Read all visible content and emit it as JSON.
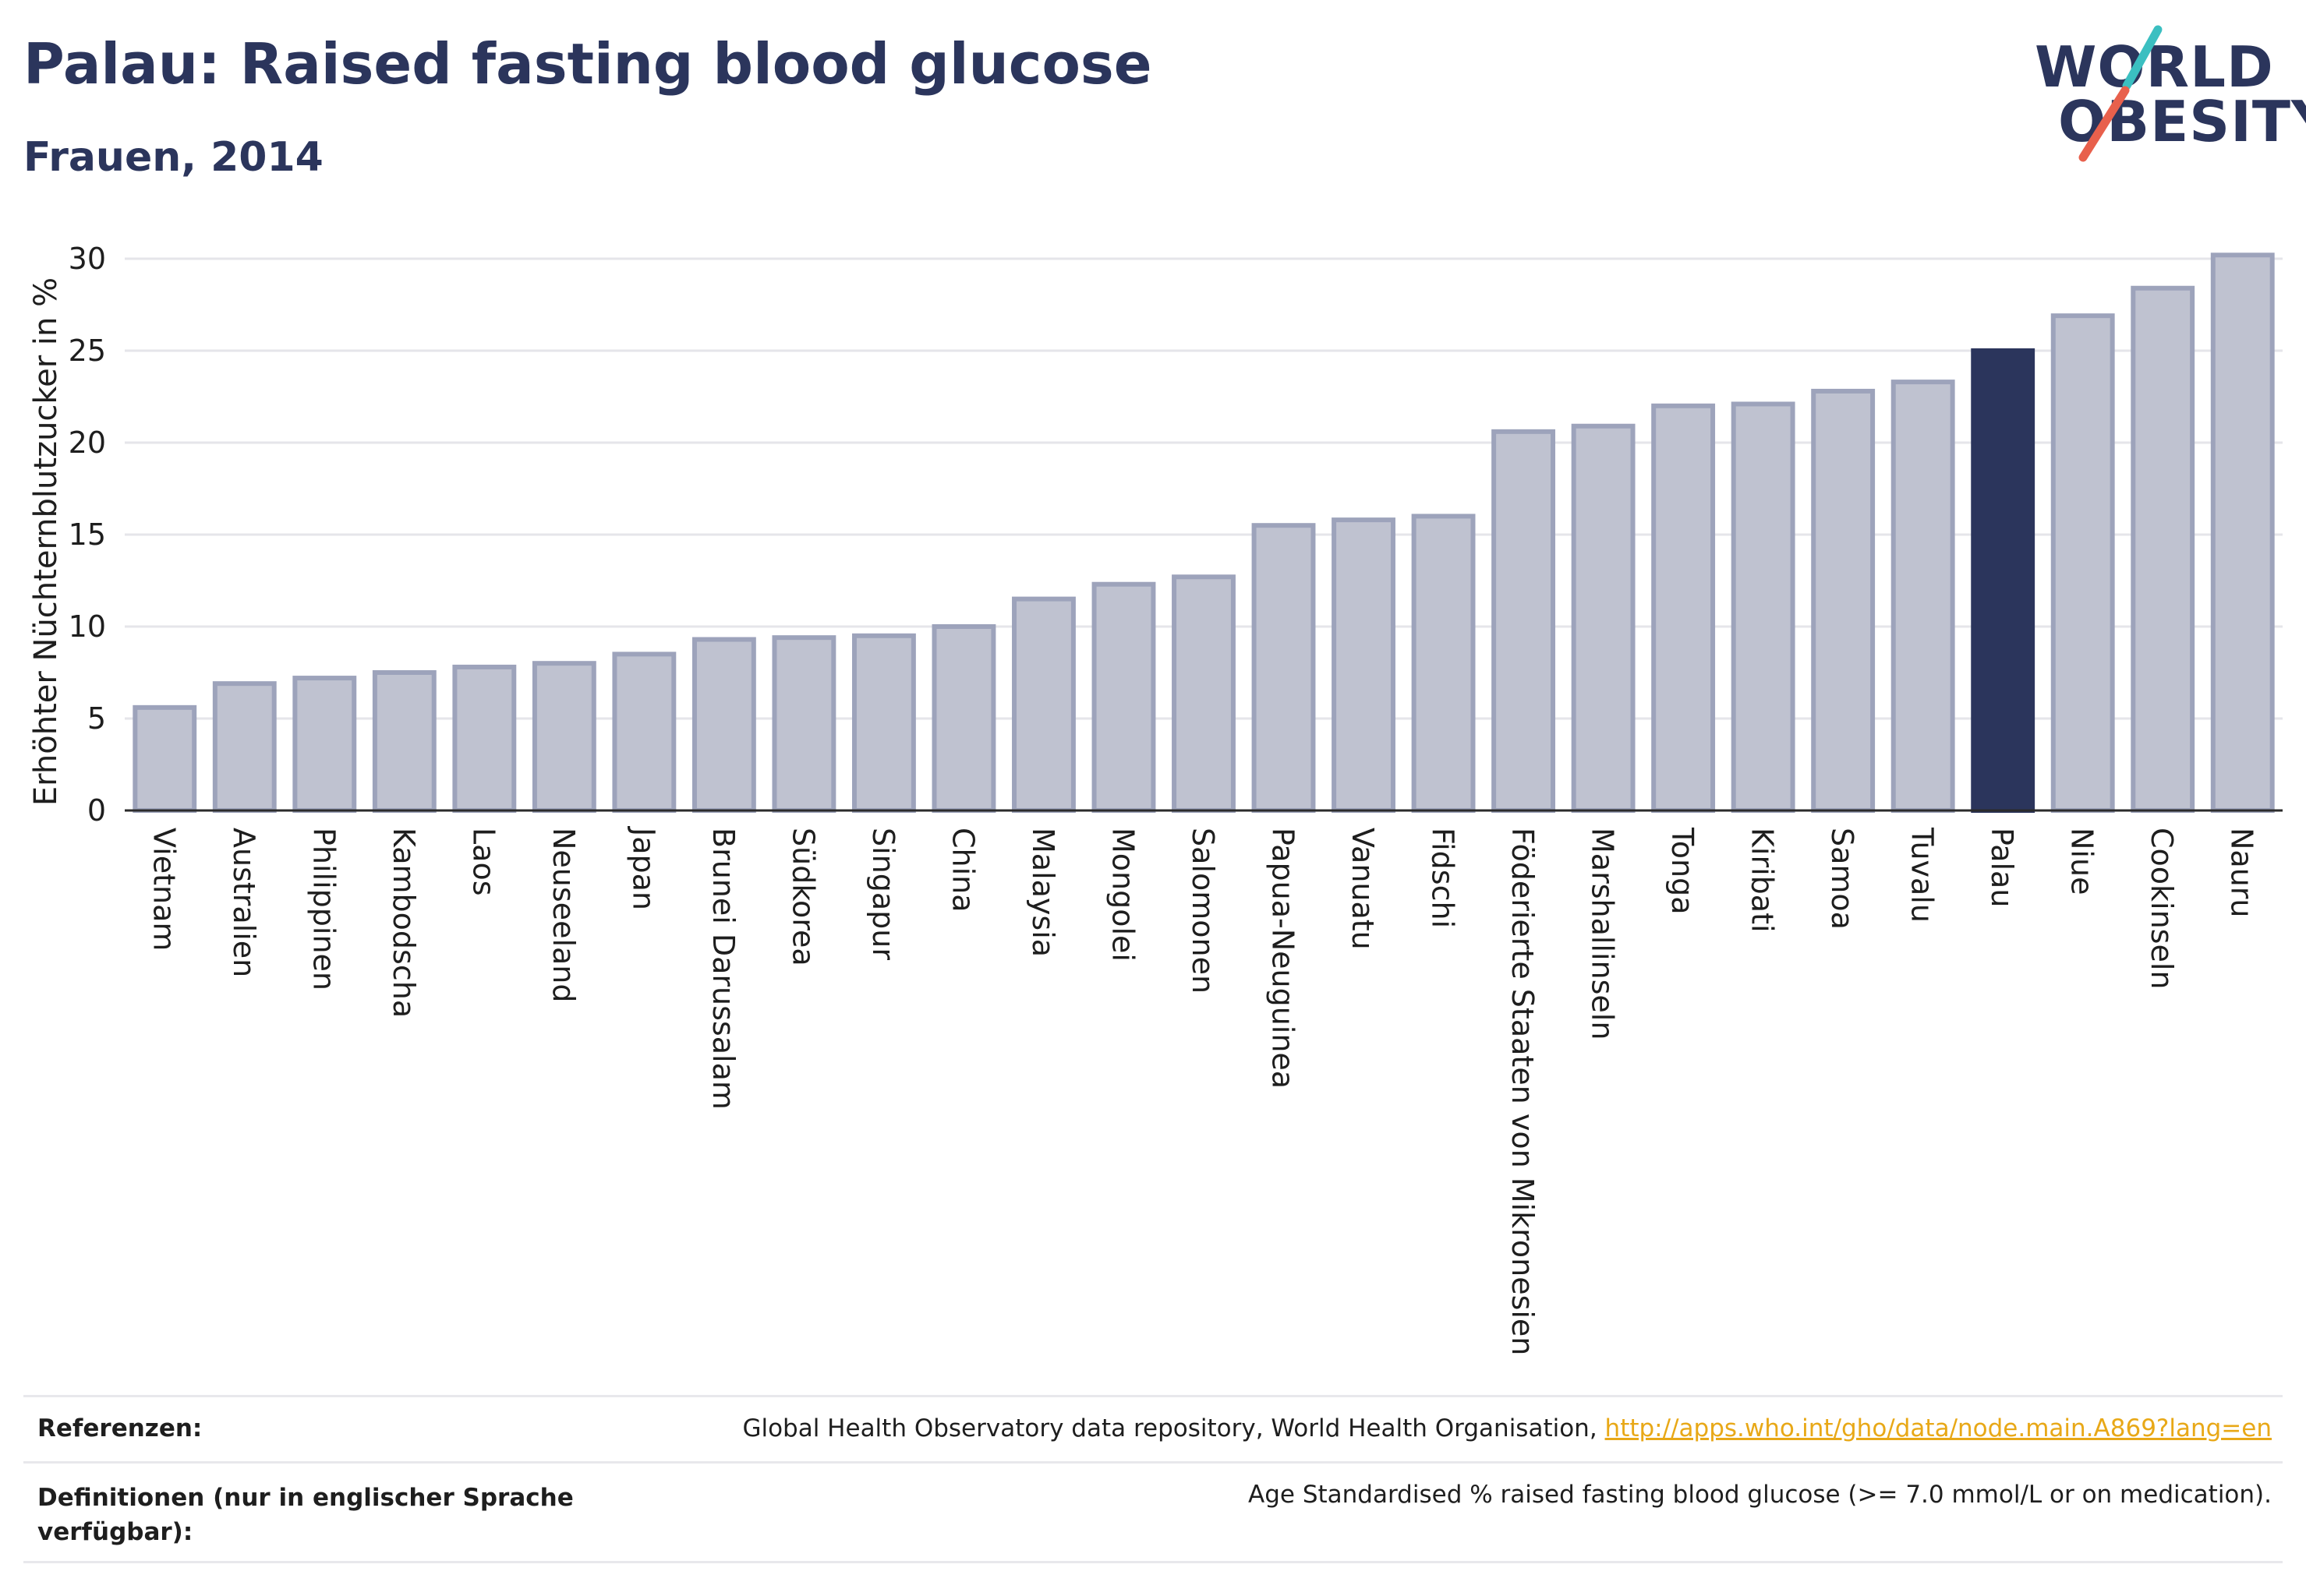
{
  "header": {
    "title": "Palau: Raised fasting blood glucose",
    "subtitle": "Frauen, 2014"
  },
  "logo": {
    "line1": "WORLD",
    "line2": "OBESITY",
    "accent_teal": "#3bbfc1",
    "accent_red": "#e8604c"
  },
  "colors": {
    "highlight": "#2b355c",
    "bar_fill": "#bfc2d0",
    "bar_stroke": "#9da3bb",
    "grid": "#e5e5ea",
    "text": "#2b355c"
  },
  "chart_data": {
    "type": "bar",
    "title": "Palau: Raised fasting blood glucose",
    "subtitle": "Frauen, 2014",
    "ylabel": "Erhöhter Nüchternblutzucker in %",
    "xlabel": "",
    "ylim": [
      0,
      30
    ],
    "yticks": [
      0,
      5,
      10,
      15,
      20,
      25,
      30
    ],
    "grid": true,
    "highlight": "Palau",
    "categories": [
      "Vietnam",
      "Australien",
      "Philippinen",
      "Kambodscha",
      "Laos",
      "Neuseeland",
      "Japan",
      "Brunei Darussalam",
      "Südkorea",
      "Singapur",
      "China",
      "Malaysia",
      "Mongolei",
      "Salomonen",
      "Papua-Neuguinea",
      "Vanuatu",
      "Fidschi",
      "Föderierte Staaten von Mikronesien",
      "Marshallinseln",
      "Tonga",
      "Kiribati",
      "Samoa",
      "Tuvalu",
      "Palau",
      "Niue",
      "Cookinseln",
      "Nauru"
    ],
    "values": [
      5.6,
      6.9,
      7.2,
      7.5,
      7.8,
      8.0,
      8.5,
      9.3,
      9.4,
      9.5,
      10.0,
      11.5,
      12.3,
      12.7,
      15.5,
      15.8,
      16.0,
      20.6,
      20.9,
      22.0,
      22.1,
      22.8,
      23.3,
      25.0,
      26.9,
      28.4,
      30.2
    ]
  },
  "footer": {
    "references_label": "Referenzen:",
    "references_text": "Global Health Observatory data repository, World Health Organisation, ",
    "references_link": "http://apps.who.int/gho/data/node.main.A869?lang=en",
    "definitions_label": "Definitionen (nur in englischer Sprache verfügbar):",
    "definitions_text": "Age Standardised % raised fasting blood glucose (>= 7.0 mmol/L or on medication)."
  }
}
